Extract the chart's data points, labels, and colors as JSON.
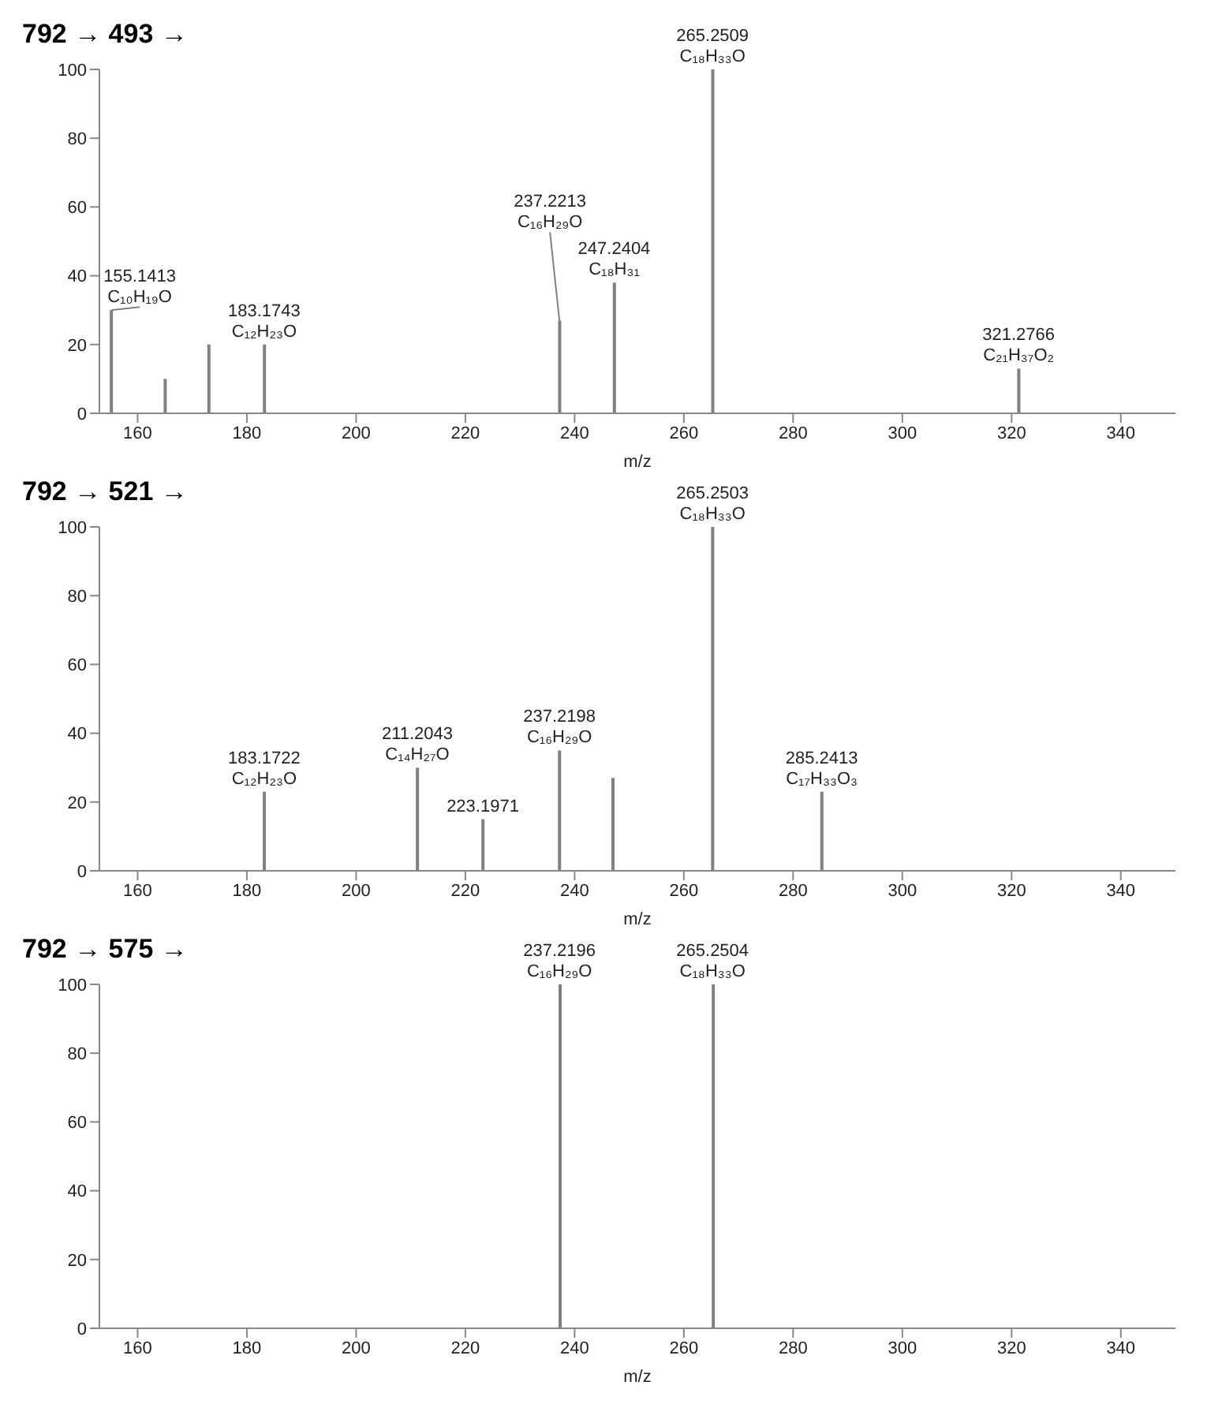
{
  "chart_data": [
    {
      "type": "bar",
      "title": "792 → 493 →",
      "xlabel": "m/z",
      "color": "#808080",
      "xlim": [
        153,
        350
      ],
      "xticks": [
        160,
        180,
        200,
        220,
        240,
        260,
        280,
        300,
        320,
        340
      ],
      "ylim": [
        0,
        100
      ],
      "yticks": [
        0,
        20,
        40,
        60,
        80,
        100
      ],
      "grid": false,
      "x": [
        155.1413,
        165,
        173,
        183.1743,
        237.2213,
        247.2404,
        265.2509,
        321.2766
      ],
      "values": [
        30,
        10,
        20,
        20,
        27,
        38,
        100,
        13
      ],
      "annotations": [
        {
          "text": "155.1413\nC₁₀H₁₉O",
          "x": 155.1413,
          "y": 30
        },
        {
          "text": "183.1743\nC₁₂H₂₃O",
          "x": 183.1743,
          "y": 20
        },
        {
          "text": "237.2213\nC₁₆H₂₉O",
          "x": 237.2213,
          "y": 27
        },
        {
          "text": "247.2404\nC₁₈H₃₁",
          "x": 247.2404,
          "y": 38
        },
        {
          "text": "265.2509\nC₁₈H₃₃O",
          "x": 265.2509,
          "y": 100
        },
        {
          "text": "321.2766\nC₂₁H₃₇O₂",
          "x": 321.2766,
          "y": 13
        }
      ]
    },
    {
      "type": "bar",
      "title": "792 → 521 →",
      "xlabel": "m/z",
      "color": "#808080",
      "xlim": [
        153,
        350
      ],
      "xticks": [
        160,
        180,
        200,
        220,
        240,
        260,
        280,
        300,
        320,
        340
      ],
      "ylim": [
        0,
        100
      ],
      "yticks": [
        0,
        20,
        40,
        60,
        80,
        100
      ],
      "grid": false,
      "x": [
        183.1722,
        211.2043,
        223.1971,
        237.2198,
        247,
        265.2503,
        285.2413
      ],
      "values": [
        23,
        30,
        15,
        35,
        27,
        100,
        23
      ],
      "annotations": [
        {
          "text": "183.1722\nC₁₂H₂₃O",
          "x": 183.1722,
          "y": 23
        },
        {
          "text": "211.2043\nC₁₄H₂₇O",
          "x": 211.2043,
          "y": 30
        },
        {
          "text": "223.1971",
          "x": 223.1971,
          "y": 15
        },
        {
          "text": "237.2198\nC₁₆H₂₉O",
          "x": 237.2198,
          "y": 35
        },
        {
          "text": "265.2503\nC₁₈H₃₃O",
          "x": 265.2503,
          "y": 100
        },
        {
          "text": "285.2413\nC₁₇H₃₃O₃",
          "x": 285.2413,
          "y": 23
        }
      ]
    },
    {
      "type": "bar",
      "title": "792 → 575 →",
      "xlabel": "m/z",
      "color": "#808080",
      "xlim": [
        153,
        350
      ],
      "xticks": [
        160,
        180,
        200,
        220,
        240,
        260,
        280,
        300,
        320,
        340
      ],
      "ylim": [
        0,
        100
      ],
      "yticks": [
        0,
        20,
        40,
        60,
        80,
        100
      ],
      "grid": false,
      "x": [
        237.2196,
        265.2504
      ],
      "values": [
        100,
        100
      ],
      "annotations": [
        {
          "text": "237.2196\nC₁₆H₂₉O",
          "x": 237.2196,
          "y": 100
        },
        {
          "text": "265.2504\nC₁₈H₃₃O",
          "x": 265.2504,
          "y": 100
        }
      ]
    }
  ]
}
